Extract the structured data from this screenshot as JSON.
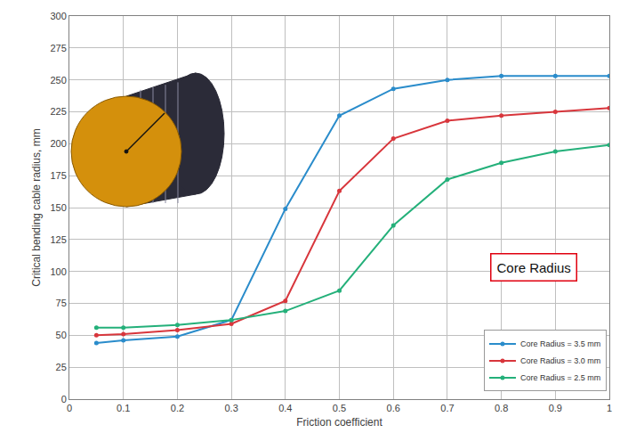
{
  "chart_data": {
    "type": "line",
    "x_label": "Friction coefficient",
    "y_label": "Critical bending cable radius, mm",
    "x": [
      0.05,
      0.1,
      0.2,
      0.3,
      0.4,
      0.5,
      0.6,
      0.7,
      0.8,
      0.9,
      1.0
    ],
    "series": [
      {
        "name": "Core Radius = 3.5 mm",
        "color": "#2a8ccb",
        "marker": "circle",
        "values": [
          44,
          46,
          49,
          62,
          149,
          222,
          243,
          250,
          253,
          253,
          253
        ]
      },
      {
        "name": "Core Radius = 3.0 mm",
        "color": "#d8363c",
        "marker": "circle",
        "values": [
          50,
          51,
          54,
          59,
          77,
          163,
          204,
          218,
          222,
          225,
          228
        ]
      },
      {
        "name": "Core Radius = 2.5 mm",
        "color": "#24b07a",
        "marker": "circle",
        "values": [
          56,
          56,
          58,
          62,
          69,
          85,
          136,
          172,
          185,
          194,
          199
        ]
      }
    ],
    "xlim": [
      0,
      1
    ],
    "xticks": [
      0,
      0.1,
      0.2,
      0.3,
      0.4,
      0.5,
      0.6,
      0.7,
      0.8,
      0.9,
      1
    ],
    "ylim": [
      0,
      300
    ],
    "yticks": [
      0,
      25,
      50,
      75,
      100,
      125,
      150,
      175,
      200,
      225,
      250,
      275,
      300
    ],
    "grid": true,
    "legend": "lower right",
    "annotations": [
      "Core Radius"
    ]
  }
}
